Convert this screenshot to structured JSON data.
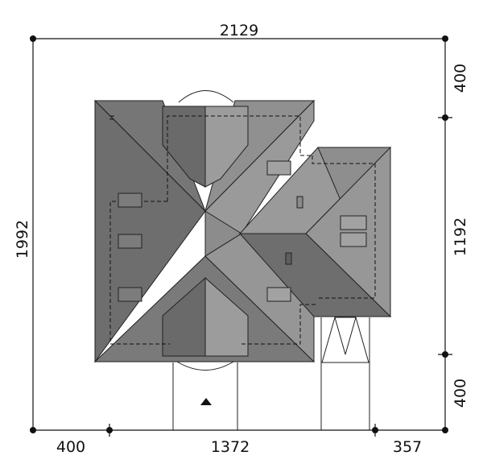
{
  "dimensions": {
    "top_width": "2129",
    "left_height": "1992",
    "right_top": "400",
    "right_middle": "1192",
    "right_bottom": "400",
    "bottom_left": "400",
    "bottom_middle": "1372",
    "bottom_right": "357"
  },
  "colors": {
    "roof_dark": "#6e6e6e",
    "roof_mid": "#7d7d7d",
    "roof_light": "#9a9a9a",
    "line": "#111111",
    "background": "#ffffff"
  },
  "icons": {
    "entrance": "entrance-triangle-icon"
  }
}
